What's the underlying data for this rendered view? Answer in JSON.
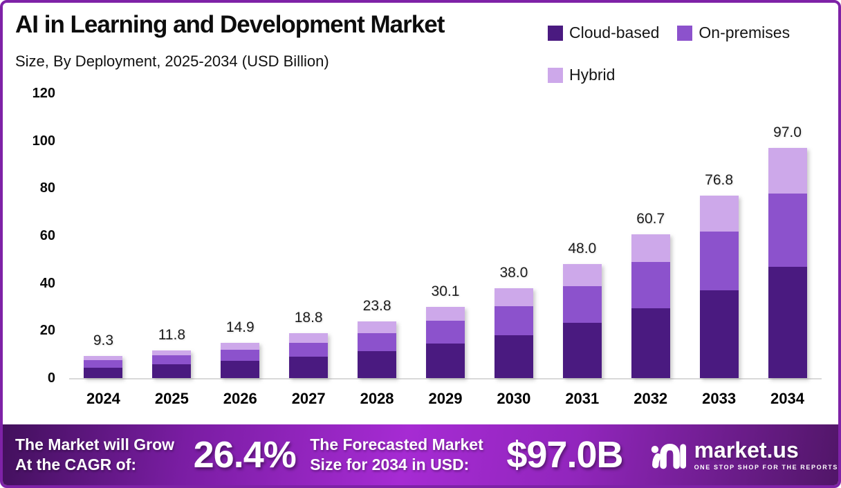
{
  "header": {
    "title": "AI in Learning and Development Market",
    "subtitle": "Size, By Deployment, 2025-2034 (USD Billion)"
  },
  "legend": [
    {
      "label": "Cloud-based",
      "color": "#4a1a80"
    },
    {
      "label": "On-premises",
      "color": "#8c52cc"
    },
    {
      "label": "Hybrid",
      "color": "#cda8ea"
    }
  ],
  "chart_data": {
    "type": "bar",
    "stacked": true,
    "title": "AI in Learning and Development Market Size, By Deployment, 2025-2034 (USD Billion)",
    "xlabel": "",
    "ylabel": "",
    "ylim": [
      0,
      120
    ],
    "yticks": [
      0,
      20,
      40,
      60,
      80,
      100,
      120
    ],
    "grid": false,
    "legend_position": "top-right",
    "categories": [
      "2024",
      "2025",
      "2026",
      "2027",
      "2028",
      "2029",
      "2030",
      "2031",
      "2032",
      "2033",
      "2034"
    ],
    "series": [
      {
        "name": "Cloud-based",
        "color": "#4a1a80",
        "values": [
          4.5,
          5.7,
          7.2,
          9.0,
          11.4,
          14.5,
          18.2,
          23.3,
          29.4,
          37.1,
          46.8
        ]
      },
      {
        "name": "On-premises",
        "color": "#8c52cc",
        "values": [
          3.0,
          3.8,
          4.8,
          6.0,
          7.6,
          9.6,
          12.2,
          15.3,
          19.4,
          24.6,
          31.0
        ]
      },
      {
        "name": "Hybrid",
        "color": "#cda8ea",
        "values": [
          1.8,
          2.3,
          2.9,
          3.8,
          4.8,
          6.0,
          7.6,
          9.4,
          11.9,
          15.1,
          19.2
        ]
      }
    ],
    "totals": [
      9.3,
      11.8,
      14.9,
      18.8,
      23.8,
      30.1,
      38.0,
      48.0,
      60.7,
      76.8,
      97.0
    ],
    "total_labels": [
      "9.3",
      "11.8",
      "14.9",
      "18.8",
      "23.8",
      "30.1",
      "38.0",
      "48.0",
      "60.7",
      "76.8",
      "97.0"
    ]
  },
  "footer": {
    "cagr_label_line1": "The Market will Grow",
    "cagr_label_line2": "At the CAGR of:",
    "cagr_value": "26.4%",
    "forecast_label_line1": "The Forecasted Market",
    "forecast_label_line2": "Size for 2034 in USD:",
    "forecast_value": "$97.0B",
    "brand_name": "market.us",
    "brand_tagline": "ONE STOP SHOP FOR THE REPORTS"
  },
  "colors": {
    "border": "#7e22a7",
    "baseline": "#d9d9d9",
    "footer_gradient": [
      "#42105c",
      "#a62bd3",
      "#511668"
    ],
    "text": "#0d0d0d",
    "footer_text": "#ffffff"
  }
}
